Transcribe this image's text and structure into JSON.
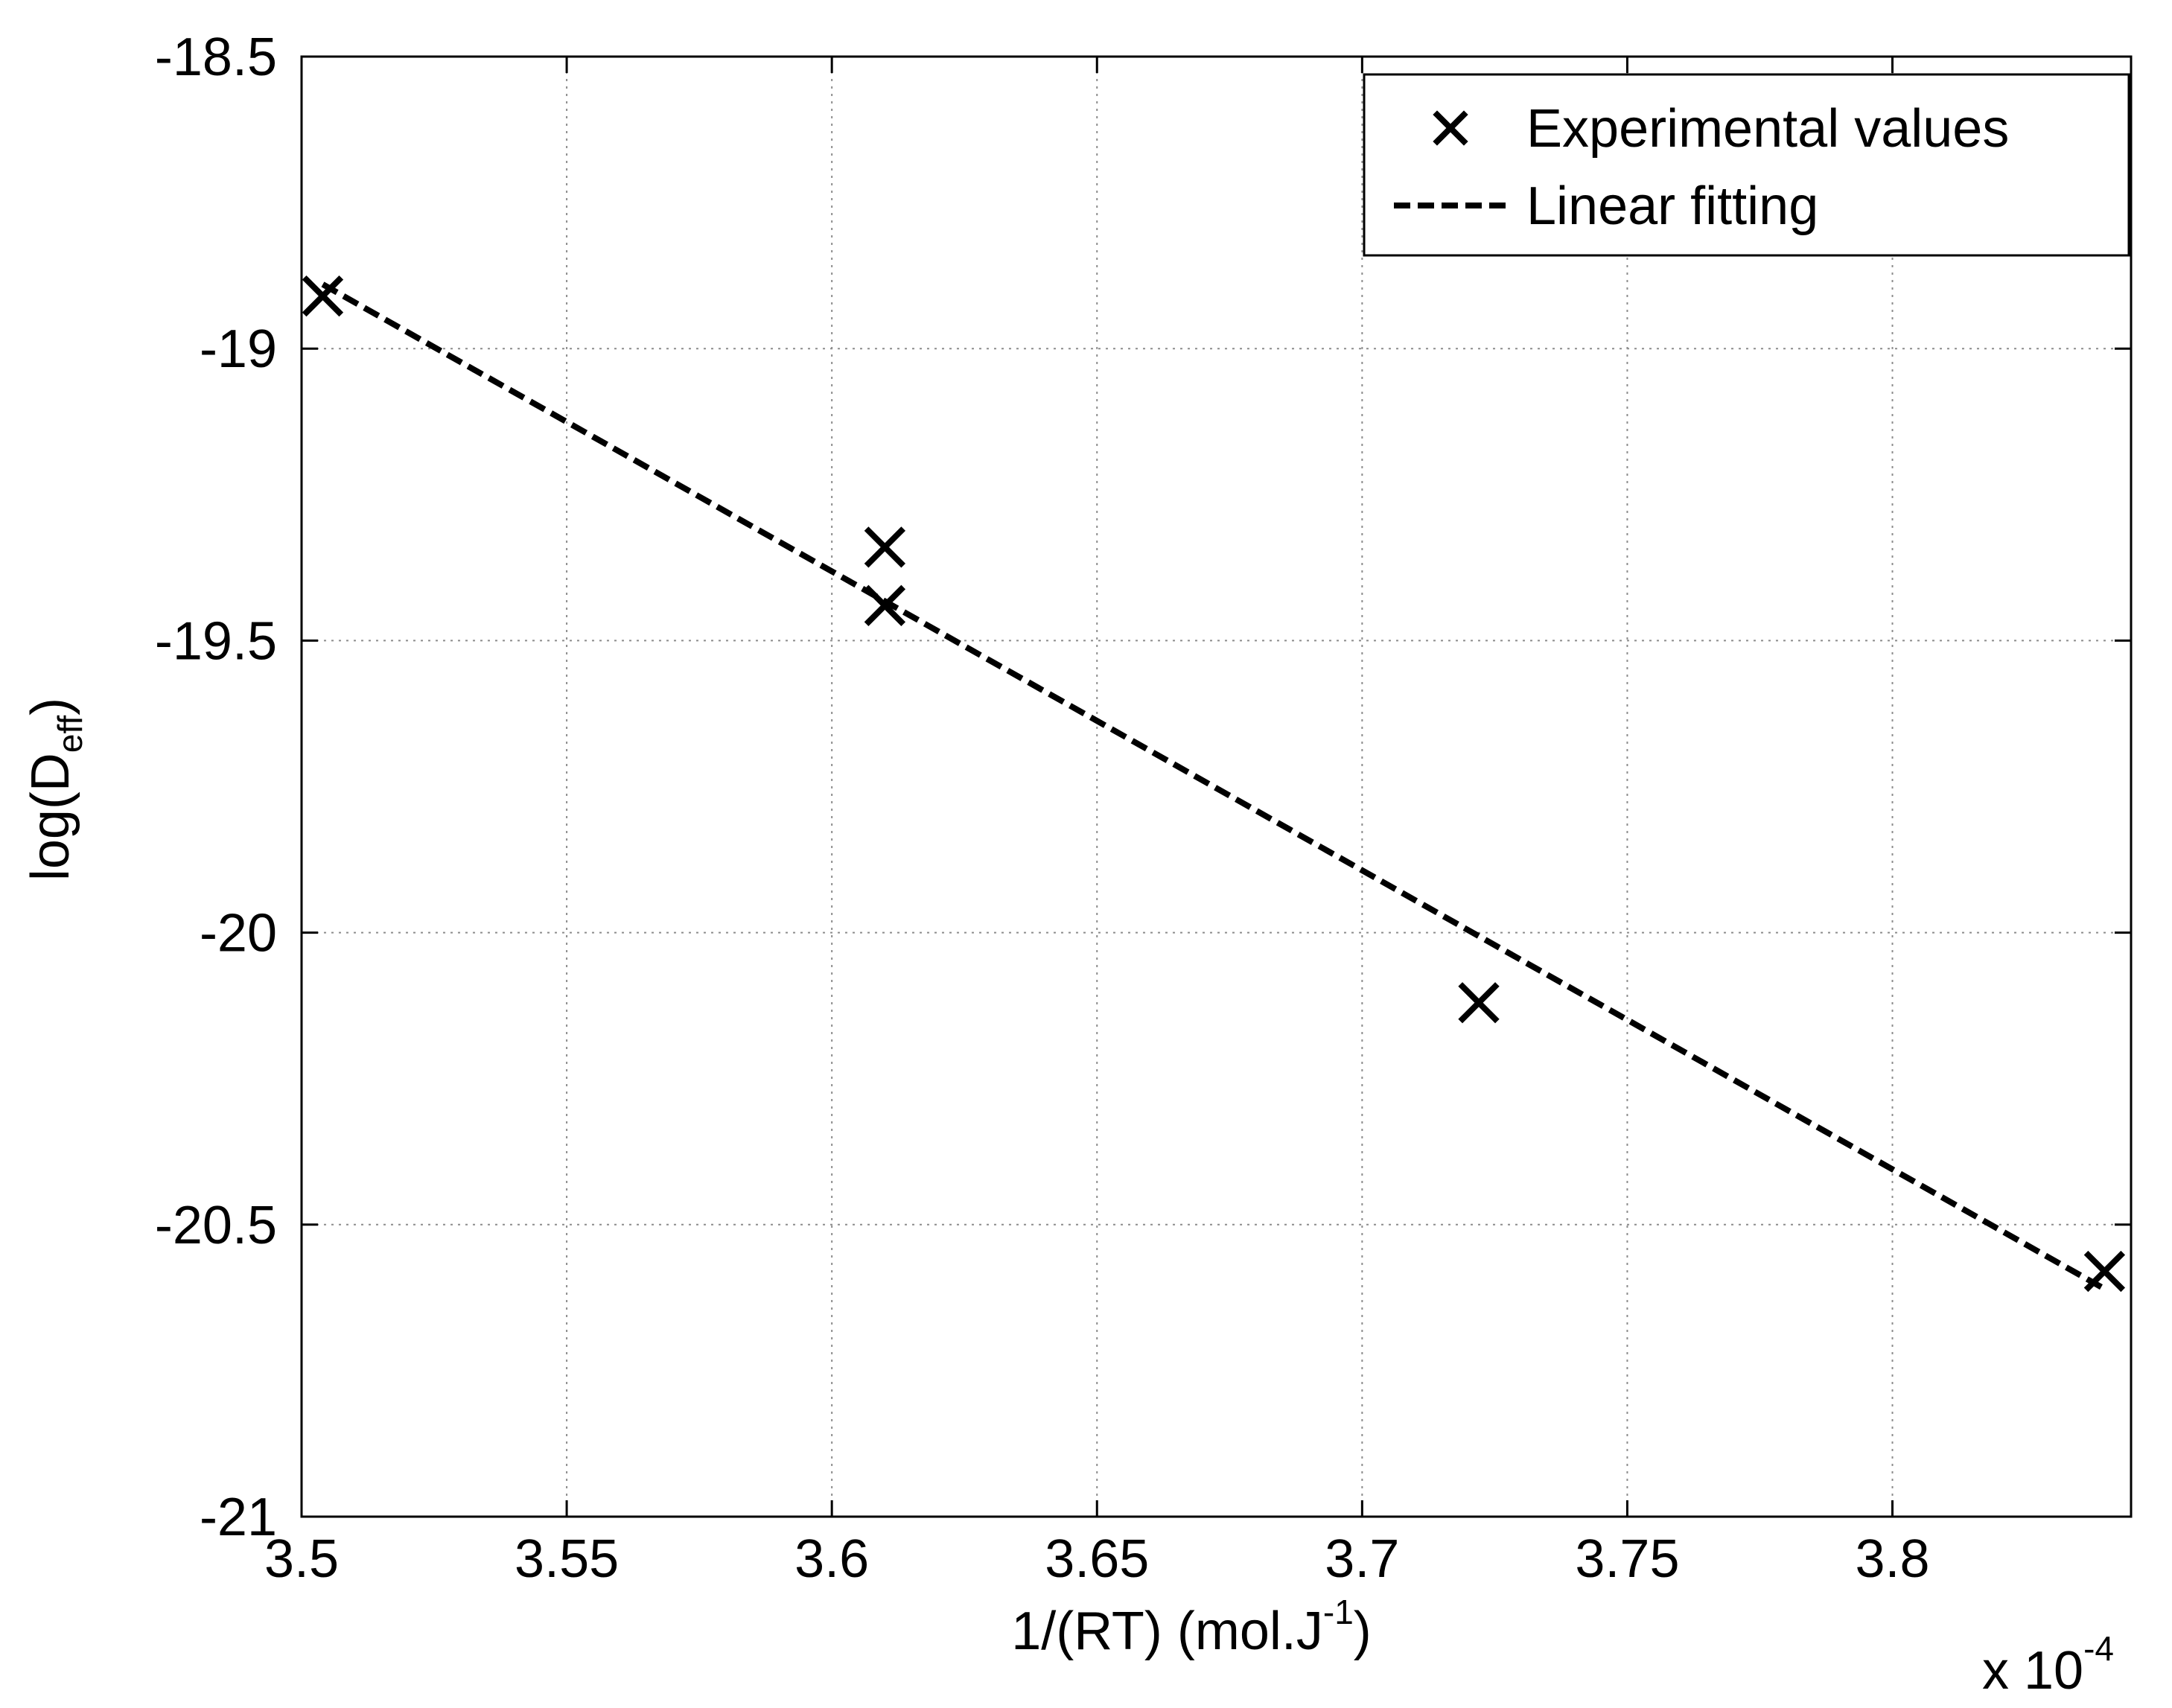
{
  "chart_data": {
    "type": "scatter",
    "title": "",
    "xlabel": {
      "base": "1/(RT) (mol.J",
      "sup": "-1",
      "tail": ")"
    },
    "ylabel": {
      "base": "log(D",
      "sub": "eff",
      "tail": ")"
    },
    "x_multiplier": {
      "base": "x 10",
      "exp": "-4"
    },
    "xlim": [
      3.5,
      3.845
    ],
    "ylim": [
      -21,
      -18.5
    ],
    "xticks": [
      3.5,
      3.55,
      3.6,
      3.65,
      3.7,
      3.75,
      3.8
    ],
    "xtick_labels": [
      "3.5",
      "3.55",
      "3.6",
      "3.65",
      "3.7",
      "3.75",
      "3.8"
    ],
    "yticks": [
      -18.5,
      -19,
      -19.5,
      -20,
      -20.5,
      -21
    ],
    "ytick_labels": [
      "-18.5",
      "-19",
      "-19.5",
      "-20",
      "-20.5",
      "-21"
    ],
    "grid": true,
    "legend_position": "top-right",
    "series": [
      {
        "name": "Experimental values",
        "kind": "marker-x",
        "color": "#000000",
        "points": [
          {
            "x": 3.504,
            "y": -18.91
          },
          {
            "x": 3.61,
            "y": -19.34
          },
          {
            "x": 3.61,
            "y": -19.44
          },
          {
            "x": 3.722,
            "y": -20.12
          },
          {
            "x": 3.84,
            "y": -20.58
          }
        ]
      },
      {
        "name": "Linear fitting",
        "kind": "dashed-line",
        "color": "#000000",
        "points": [
          {
            "x": 3.504,
            "y": -18.89
          },
          {
            "x": 3.84,
            "y": -20.61
          }
        ]
      }
    ]
  }
}
